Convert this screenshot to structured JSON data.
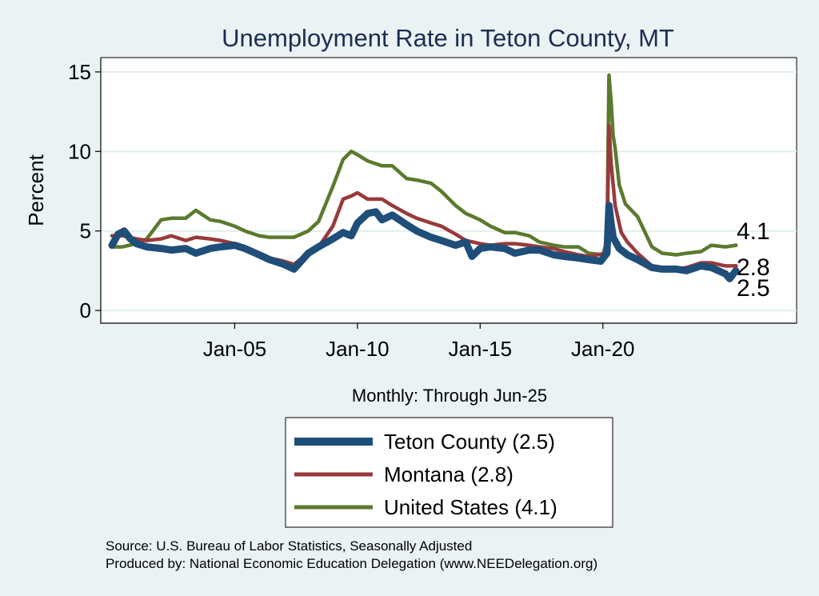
{
  "chart_data": {
    "type": "line",
    "title": "Unemployment Rate in Teton  County, MT",
    "ylabel": "Percent",
    "xlabel": "",
    "x_note": "Monthly: Through Jun-25",
    "x_range": [
      "2000-01",
      "2025-06"
    ],
    "x_ticks": [
      {
        "date": "2005-01",
        "label": "Jan-05"
      },
      {
        "date": "2010-01",
        "label": "Jan-10"
      },
      {
        "date": "2015-01",
        "label": "Jan-15"
      },
      {
        "date": "2020-01",
        "label": "Jan-20"
      }
    ],
    "ylim": [
      -0.8,
      15.9
    ],
    "y_ticks": [
      0,
      5,
      10,
      15
    ],
    "grid": true,
    "legend_position": "bottom",
    "series": [
      {
        "name": "Teton  County (2.5)",
        "color": "#1f4e79",
        "end_label": "2.5",
        "points": [
          [
            "2000-01",
            4.1
          ],
          [
            "2000-04",
            4.8
          ],
          [
            "2000-07",
            5.0
          ],
          [
            "2000-10",
            4.5
          ],
          [
            "2001-01",
            4.2
          ],
          [
            "2001-06",
            4.0
          ],
          [
            "2002-01",
            3.9
          ],
          [
            "2002-06",
            3.8
          ],
          [
            "2003-01",
            3.9
          ],
          [
            "2003-06",
            3.6
          ],
          [
            "2004-01",
            3.9
          ],
          [
            "2004-06",
            4.0
          ],
          [
            "2005-01",
            4.1
          ],
          [
            "2005-06",
            3.9
          ],
          [
            "2006-01",
            3.5
          ],
          [
            "2006-06",
            3.2
          ],
          [
            "2007-01",
            2.9
          ],
          [
            "2007-06",
            2.6
          ],
          [
            "2008-01",
            3.6
          ],
          [
            "2008-06",
            4.0
          ],
          [
            "2009-01",
            4.5
          ],
          [
            "2009-06",
            4.9
          ],
          [
            "2009-10",
            4.7
          ],
          [
            "2010-01",
            5.5
          ],
          [
            "2010-06",
            6.1
          ],
          [
            "2010-10",
            6.2
          ],
          [
            "2011-01",
            5.7
          ],
          [
            "2011-06",
            6.0
          ],
          [
            "2012-01",
            5.4
          ],
          [
            "2012-06",
            5.0
          ],
          [
            "2013-01",
            4.6
          ],
          [
            "2013-06",
            4.4
          ],
          [
            "2014-01",
            4.1
          ],
          [
            "2014-06",
            4.3
          ],
          [
            "2014-09",
            3.4
          ],
          [
            "2015-01",
            3.9
          ],
          [
            "2015-06",
            4.0
          ],
          [
            "2016-01",
            3.9
          ],
          [
            "2016-06",
            3.6
          ],
          [
            "2017-01",
            3.8
          ],
          [
            "2017-06",
            3.8
          ],
          [
            "2018-01",
            3.5
          ],
          [
            "2018-06",
            3.4
          ],
          [
            "2019-01",
            3.3
          ],
          [
            "2019-06",
            3.2
          ],
          [
            "2019-12",
            3.1
          ],
          [
            "2020-03",
            3.6
          ],
          [
            "2020-04",
            6.6
          ],
          [
            "2020-05",
            5.5
          ],
          [
            "2020-06",
            4.6
          ],
          [
            "2020-09",
            3.9
          ],
          [
            "2021-01",
            3.5
          ],
          [
            "2021-06",
            3.2
          ],
          [
            "2022-01",
            2.7
          ],
          [
            "2022-06",
            2.6
          ],
          [
            "2023-01",
            2.6
          ],
          [
            "2023-06",
            2.5
          ],
          [
            "2024-01",
            2.8
          ],
          [
            "2024-06",
            2.7
          ],
          [
            "2025-01",
            2.3
          ],
          [
            "2025-03",
            2.0
          ],
          [
            "2025-06",
            2.5
          ]
        ]
      },
      {
        "name": "Montana (2.8)",
        "color": "#983a3a",
        "end_label": "2.8",
        "points": [
          [
            "2000-01",
            4.7
          ],
          [
            "2000-06",
            4.7
          ],
          [
            "2001-01",
            4.5
          ],
          [
            "2001-06",
            4.4
          ],
          [
            "2002-01",
            4.5
          ],
          [
            "2002-06",
            4.7
          ],
          [
            "2003-01",
            4.4
          ],
          [
            "2003-06",
            4.6
          ],
          [
            "2004-01",
            4.5
          ],
          [
            "2004-06",
            4.4
          ],
          [
            "2005-01",
            4.2
          ],
          [
            "2005-06",
            4.0
          ],
          [
            "2006-01",
            3.6
          ],
          [
            "2006-06",
            3.3
          ],
          [
            "2007-01",
            3.1
          ],
          [
            "2007-06",
            2.9
          ],
          [
            "2008-01",
            3.6
          ],
          [
            "2008-06",
            4.0
          ],
          [
            "2009-01",
            5.3
          ],
          [
            "2009-06",
            7.0
          ],
          [
            "2009-10",
            7.2
          ],
          [
            "2010-01",
            7.4
          ],
          [
            "2010-06",
            7.0
          ],
          [
            "2011-01",
            7.0
          ],
          [
            "2011-06",
            6.6
          ],
          [
            "2012-01",
            6.1
          ],
          [
            "2012-06",
            5.8
          ],
          [
            "2013-01",
            5.5
          ],
          [
            "2013-06",
            5.3
          ],
          [
            "2014-01",
            4.8
          ],
          [
            "2014-06",
            4.4
          ],
          [
            "2015-01",
            4.2
          ],
          [
            "2015-06",
            4.1
          ],
          [
            "2016-01",
            4.2
          ],
          [
            "2016-06",
            4.2
          ],
          [
            "2017-01",
            4.1
          ],
          [
            "2017-06",
            4.0
          ],
          [
            "2018-01",
            3.9
          ],
          [
            "2018-06",
            3.7
          ],
          [
            "2019-01",
            3.5
          ],
          [
            "2019-06",
            3.4
          ],
          [
            "2020-03",
            3.6
          ],
          [
            "2020-04",
            11.6
          ],
          [
            "2020-05",
            9.3
          ],
          [
            "2020-07",
            6.6
          ],
          [
            "2020-10",
            4.9
          ],
          [
            "2021-01",
            4.3
          ],
          [
            "2021-06",
            3.6
          ],
          [
            "2022-01",
            2.8
          ],
          [
            "2022-06",
            2.6
          ],
          [
            "2023-01",
            2.6
          ],
          [
            "2023-06",
            2.7
          ],
          [
            "2024-01",
            3.0
          ],
          [
            "2024-06",
            3.0
          ],
          [
            "2025-01",
            2.8
          ],
          [
            "2025-06",
            2.8
          ]
        ]
      },
      {
        "name": "United States (4.1)",
        "color": "#5b7a2e",
        "end_label": "4.1",
        "points": [
          [
            "2000-01",
            4.0
          ],
          [
            "2000-06",
            4.0
          ],
          [
            "2001-01",
            4.2
          ],
          [
            "2001-06",
            4.5
          ],
          [
            "2002-01",
            5.7
          ],
          [
            "2002-06",
            5.8
          ],
          [
            "2003-01",
            5.8
          ],
          [
            "2003-06",
            6.3
          ],
          [
            "2004-01",
            5.7
          ],
          [
            "2004-06",
            5.6
          ],
          [
            "2005-01",
            5.3
          ],
          [
            "2005-06",
            5.0
          ],
          [
            "2006-01",
            4.7
          ],
          [
            "2006-06",
            4.6
          ],
          [
            "2007-01",
            4.6
          ],
          [
            "2007-06",
            4.6
          ],
          [
            "2008-01",
            5.0
          ],
          [
            "2008-06",
            5.6
          ],
          [
            "2009-01",
            7.8
          ],
          [
            "2009-06",
            9.5
          ],
          [
            "2009-10",
            10.0
          ],
          [
            "2010-01",
            9.8
          ],
          [
            "2010-06",
            9.4
          ],
          [
            "2011-01",
            9.1
          ],
          [
            "2011-06",
            9.1
          ],
          [
            "2012-01",
            8.3
          ],
          [
            "2012-06",
            8.2
          ],
          [
            "2013-01",
            8.0
          ],
          [
            "2013-06",
            7.5
          ],
          [
            "2014-01",
            6.6
          ],
          [
            "2014-06",
            6.1
          ],
          [
            "2015-01",
            5.7
          ],
          [
            "2015-06",
            5.3
          ],
          [
            "2016-01",
            4.9
          ],
          [
            "2016-06",
            4.9
          ],
          [
            "2017-01",
            4.7
          ],
          [
            "2017-06",
            4.3
          ],
          [
            "2018-01",
            4.1
          ],
          [
            "2018-06",
            4.0
          ],
          [
            "2019-01",
            4.0
          ],
          [
            "2019-06",
            3.6
          ],
          [
            "2020-01",
            3.5
          ],
          [
            "2020-03",
            4.4
          ],
          [
            "2020-04",
            14.8
          ],
          [
            "2020-05",
            13.2
          ],
          [
            "2020-06",
            11.0
          ],
          [
            "2020-07",
            10.2
          ],
          [
            "2020-09",
            7.9
          ],
          [
            "2020-12",
            6.7
          ],
          [
            "2021-06",
            5.9
          ],
          [
            "2022-01",
            4.0
          ],
          [
            "2022-06",
            3.6
          ],
          [
            "2023-01",
            3.5
          ],
          [
            "2023-06",
            3.6
          ],
          [
            "2024-01",
            3.7
          ],
          [
            "2024-06",
            4.1
          ],
          [
            "2025-01",
            4.0
          ],
          [
            "2025-06",
            4.1
          ]
        ]
      }
    ]
  },
  "source_lines": [
    "Source: U.S. Bureau of Labor Statistics, Seasonally Adjusted",
    "Produced by: National Economic Education Delegation (www.NEEDelegation.org)"
  ]
}
